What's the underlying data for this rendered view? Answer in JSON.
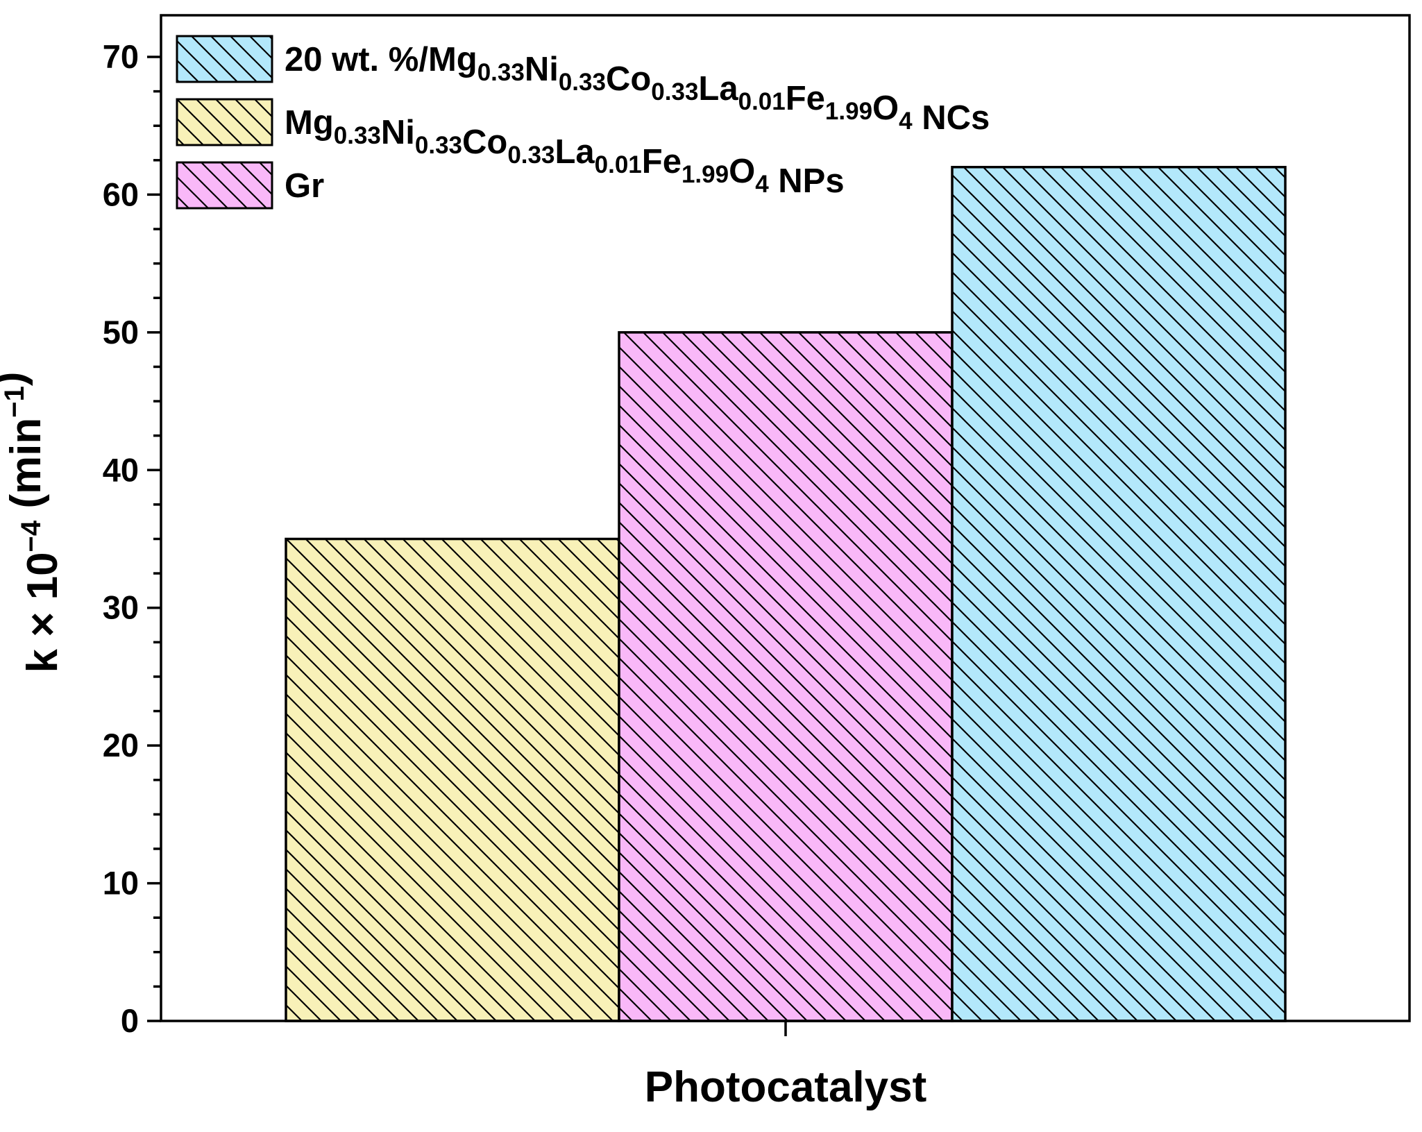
{
  "chart_data": {
    "type": "bar",
    "title": "",
    "xlabel": "Photocatalyst",
    "ylabel": {
      "parts": [
        {
          "t": "k × 10"
        },
        {
          "t": "−4",
          "sup": true
        },
        {
          "t": " (min"
        },
        {
          "t": "−1",
          "sup": true
        },
        {
          "t": ")"
        }
      ]
    },
    "ylim": [
      0,
      70
    ],
    "yticks": [
      "0",
      "10",
      "20",
      "30",
      "40",
      "50",
      "60",
      "70"
    ],
    "ytick_values": [
      0,
      10,
      20,
      30,
      40,
      50,
      60,
      70
    ],
    "y_minor_step": 2.5,
    "grid": false,
    "legend_position": "top-left",
    "bar_pattern": "diagonal-hatch",
    "series": [
      {
        "key": "nps",
        "value": 35,
        "color": "#f8f1b8",
        "legend_parts": [
          {
            "t": "Mg"
          },
          {
            "t": "0.33",
            "sub": true
          },
          {
            "t": "Ni"
          },
          {
            "t": "0.33",
            "sub": true
          },
          {
            "t": "Co"
          },
          {
            "t": "0.33",
            "sub": true
          },
          {
            "t": "La"
          },
          {
            "t": "0.01",
            "sub": true
          },
          {
            "t": "Fe"
          },
          {
            "t": "1.99",
            "sub": true
          },
          {
            "t": "O"
          },
          {
            "t": "4",
            "sub": true
          },
          {
            "t": " NPs"
          }
        ]
      },
      {
        "key": "gr",
        "value": 50,
        "color": "#f9b8f8",
        "legend_parts": [
          {
            "t": "Gr"
          }
        ]
      },
      {
        "key": "ncs",
        "value": 62,
        "color": "#b3e8fb",
        "legend_parts": [
          {
            "t": "20 wt. %/Mg"
          },
          {
            "t": "0.33",
            "sub": true
          },
          {
            "t": "Ni"
          },
          {
            "t": "0.33",
            "sub": true
          },
          {
            "t": "Co"
          },
          {
            "t": "0.33",
            "sub": true
          },
          {
            "t": "La"
          },
          {
            "t": "0.01",
            "sub": true
          },
          {
            "t": "Fe"
          },
          {
            "t": "1.99",
            "sub": true
          },
          {
            "t": "O"
          },
          {
            "t": "4",
            "sub": true
          },
          {
            "t": " NCs"
          }
        ]
      }
    ],
    "bar_order": [
      "nps",
      "gr",
      "ncs"
    ],
    "legend_order": [
      "ncs",
      "nps",
      "gr"
    ]
  }
}
